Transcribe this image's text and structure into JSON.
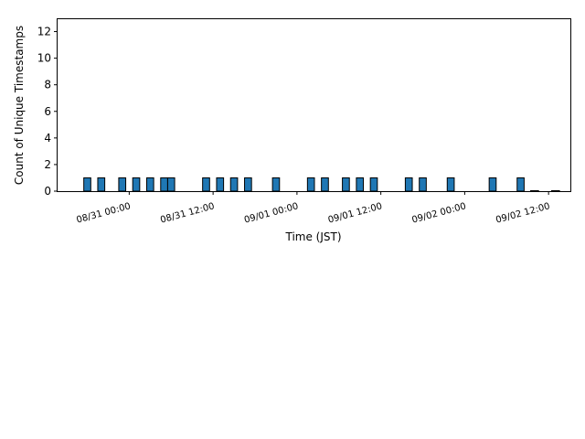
{
  "chart_data": {
    "type": "bar",
    "xlabel": "Time (JST)",
    "ylabel": "Count of Unique Timestamps",
    "ylim": [
      0,
      13
    ],
    "xlim": [
      "08/30 13:45",
      "09/02 15:15"
    ],
    "yticks": [
      0,
      2,
      4,
      6,
      8,
      10,
      12
    ],
    "xticks": [
      "08/31 00:00",
      "08/31 12:00",
      "09/01 00:00",
      "09/01 12:00",
      "09/02 00:00",
      "09/02 12:00"
    ],
    "bar_width_hours": 1,
    "bar_color": "#1f77b4",
    "edge_color": "#000000",
    "grid": false,
    "x": [
      "08/30 18:00",
      "08/30 20:00",
      "08/30 23:00",
      "08/31 01:00",
      "08/31 03:00",
      "08/31 05:00",
      "08/31 06:00",
      "08/31 11:00",
      "08/31 13:00",
      "08/31 15:00",
      "08/31 17:00",
      "08/31 21:00",
      "09/01 02:00",
      "09/01 04:00",
      "09/01 07:00",
      "09/01 09:00",
      "09/01 11:00",
      "09/01 16:00",
      "09/01 18:00",
      "09/01 22:00",
      "09/02 04:00",
      "09/02 08:00",
      "09/02 10:00",
      "09/02 13:00"
    ],
    "values": [
      1,
      1,
      1,
      1,
      1,
      1,
      1,
      1,
      1,
      1,
      1,
      1,
      1,
      1,
      1,
      1,
      1,
      1,
      1,
      1,
      1,
      1,
      0,
      0
    ]
  }
}
